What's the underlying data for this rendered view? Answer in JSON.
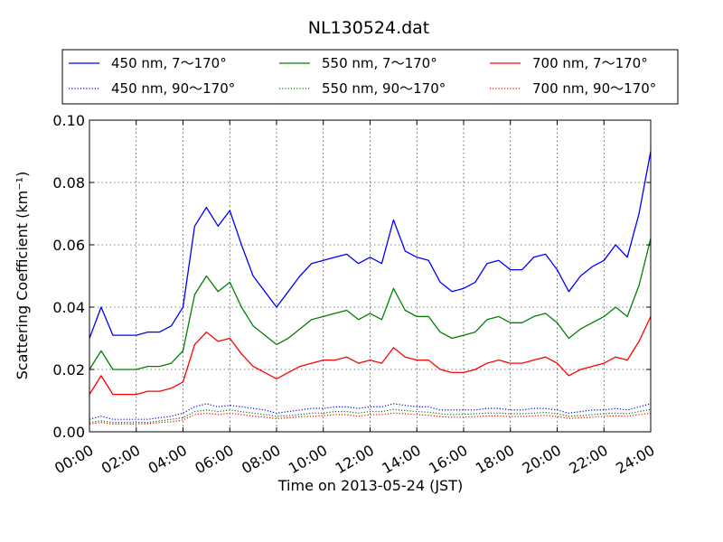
{
  "chart_data": {
    "type": "line",
    "title": "NL130524.dat",
    "xlabel": "Time on 2013-05-24 (JST)",
    "ylabel": "Scattering Coefficient (km⁻¹)",
    "xlim": [
      "00:00",
      "24:00"
    ],
    "ylim": [
      0.0,
      0.1
    ],
    "x_ticks": [
      "00:00",
      "02:00",
      "04:00",
      "06:00",
      "08:00",
      "10:00",
      "12:00",
      "14:00",
      "16:00",
      "18:00",
      "20:00",
      "22:00",
      "24:00"
    ],
    "y_ticks": [
      "0.00",
      "0.02",
      "0.04",
      "0.06",
      "0.08",
      "0.10"
    ],
    "grid": true,
    "legend_position": "top",
    "x": [
      "00:00",
      "00:30",
      "01:00",
      "01:30",
      "02:00",
      "02:30",
      "03:00",
      "03:30",
      "04:00",
      "04:30",
      "05:00",
      "05:30",
      "06:00",
      "06:30",
      "07:00",
      "07:30",
      "08:00",
      "08:30",
      "09:00",
      "09:30",
      "10:00",
      "10:30",
      "11:00",
      "11:30",
      "12:00",
      "12:30",
      "13:00",
      "13:30",
      "14:00",
      "14:30",
      "15:00",
      "15:30",
      "16:00",
      "16:30",
      "17:00",
      "17:30",
      "18:00",
      "18:30",
      "19:00",
      "19:30",
      "20:00",
      "20:30",
      "21:00",
      "21:30",
      "22:00",
      "22:30",
      "23:00",
      "23:30",
      "24:00"
    ],
    "series": [
      {
        "name": "450 nm, 7～170°",
        "color": "#0000ff",
        "style": "solid",
        "values": [
          0.03,
          0.04,
          0.031,
          0.031,
          0.031,
          0.032,
          0.032,
          0.034,
          0.04,
          0.066,
          0.072,
          0.066,
          0.071,
          0.06,
          0.05,
          0.045,
          0.04,
          0.045,
          0.05,
          0.054,
          0.055,
          0.056,
          0.057,
          0.054,
          0.056,
          0.054,
          0.068,
          0.058,
          0.056,
          0.055,
          0.048,
          0.045,
          0.046,
          0.048,
          0.054,
          0.055,
          0.052,
          0.052,
          0.056,
          0.057,
          0.052,
          0.045,
          0.05,
          0.053,
          0.055,
          0.06,
          0.056,
          0.07,
          0.09
        ]
      },
      {
        "name": "450 nm, 90～170°",
        "color": "#0000ff",
        "style": "dotted",
        "values": [
          0.004,
          0.005,
          0.004,
          0.004,
          0.004,
          0.004,
          0.0045,
          0.005,
          0.006,
          0.008,
          0.009,
          0.008,
          0.0085,
          0.008,
          0.0075,
          0.007,
          0.006,
          0.0065,
          0.007,
          0.0075,
          0.0075,
          0.008,
          0.008,
          0.0075,
          0.008,
          0.008,
          0.009,
          0.0085,
          0.008,
          0.008,
          0.007,
          0.007,
          0.007,
          0.007,
          0.0075,
          0.0075,
          0.007,
          0.007,
          0.0075,
          0.0075,
          0.007,
          0.006,
          0.0065,
          0.007,
          0.007,
          0.0075,
          0.007,
          0.008,
          0.009
        ]
      },
      {
        "name": "550 nm, 7～170°",
        "color": "#008000",
        "style": "solid",
        "values": [
          0.02,
          0.026,
          0.02,
          0.02,
          0.02,
          0.021,
          0.021,
          0.022,
          0.026,
          0.044,
          0.05,
          0.045,
          0.048,
          0.04,
          0.034,
          0.031,
          0.028,
          0.03,
          0.033,
          0.036,
          0.037,
          0.038,
          0.039,
          0.036,
          0.038,
          0.036,
          0.046,
          0.039,
          0.037,
          0.037,
          0.032,
          0.03,
          0.031,
          0.032,
          0.036,
          0.037,
          0.035,
          0.035,
          0.037,
          0.038,
          0.035,
          0.03,
          0.033,
          0.035,
          0.037,
          0.04,
          0.037,
          0.047,
          0.062
        ]
      },
      {
        "name": "550 nm, 90～170°",
        "color": "#008000",
        "style": "dotted",
        "values": [
          0.003,
          0.0035,
          0.003,
          0.003,
          0.003,
          0.003,
          0.0035,
          0.004,
          0.0045,
          0.0065,
          0.007,
          0.0065,
          0.007,
          0.0065,
          0.006,
          0.0055,
          0.005,
          0.0052,
          0.0055,
          0.006,
          0.006,
          0.0065,
          0.0065,
          0.006,
          0.0065,
          0.0065,
          0.0072,
          0.0068,
          0.0065,
          0.0063,
          0.0058,
          0.0055,
          0.0056,
          0.0058,
          0.006,
          0.006,
          0.0058,
          0.0058,
          0.006,
          0.0062,
          0.0058,
          0.005,
          0.0052,
          0.0055,
          0.0058,
          0.006,
          0.0058,
          0.0065,
          0.0072
        ]
      },
      {
        "name": "700 nm, 7～170°",
        "color": "#ff0000",
        "style": "solid",
        "values": [
          0.012,
          0.018,
          0.012,
          0.012,
          0.012,
          0.013,
          0.013,
          0.014,
          0.016,
          0.028,
          0.032,
          0.029,
          0.03,
          0.025,
          0.021,
          0.019,
          0.017,
          0.019,
          0.021,
          0.022,
          0.023,
          0.023,
          0.024,
          0.022,
          0.023,
          0.022,
          0.027,
          0.024,
          0.023,
          0.023,
          0.02,
          0.019,
          0.019,
          0.02,
          0.022,
          0.023,
          0.022,
          0.022,
          0.023,
          0.024,
          0.022,
          0.018,
          0.02,
          0.021,
          0.022,
          0.024,
          0.023,
          0.029,
          0.037
        ]
      },
      {
        "name": "700 nm, 90～170°",
        "color": "#ff0000",
        "style": "dotted",
        "values": [
          0.0025,
          0.003,
          0.0025,
          0.0025,
          0.0025,
          0.0026,
          0.003,
          0.0032,
          0.0038,
          0.0055,
          0.006,
          0.0055,
          0.006,
          0.0055,
          0.005,
          0.0047,
          0.0042,
          0.0045,
          0.0048,
          0.005,
          0.0052,
          0.0055,
          0.0055,
          0.005,
          0.0055,
          0.0055,
          0.006,
          0.0058,
          0.0055,
          0.0053,
          0.0049,
          0.0047,
          0.0047,
          0.0049,
          0.0051,
          0.0051,
          0.0049,
          0.0049,
          0.0051,
          0.0053,
          0.0049,
          0.0043,
          0.0045,
          0.0047,
          0.005,
          0.0051,
          0.005,
          0.0055,
          0.006
        ]
      }
    ]
  }
}
